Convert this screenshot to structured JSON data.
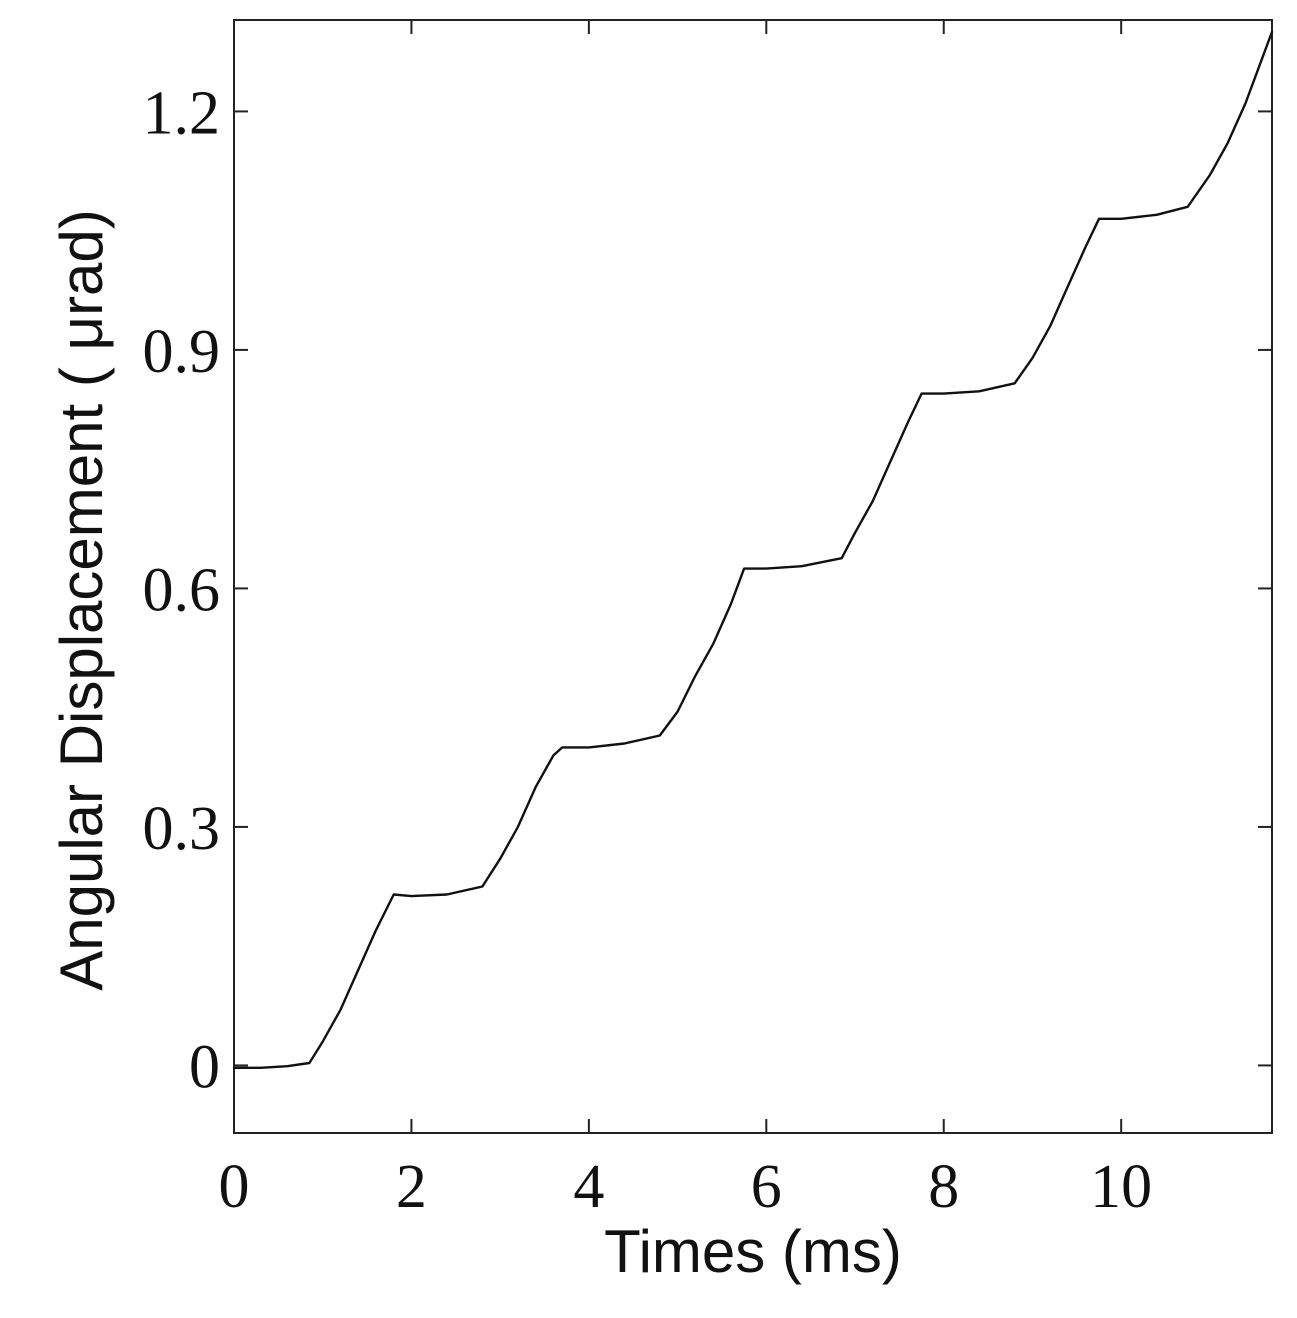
{
  "chart_data": {
    "type": "line",
    "xlabel": "Times (ms)",
    "ylabel": "Angular Displacement ( μrad)",
    "xlim": [
      0,
      11.7
    ],
    "ylim": [
      -0.085,
      1.315
    ],
    "xticks": [
      0,
      2,
      4,
      6,
      8,
      10
    ],
    "xtick_labels": [
      "0",
      "2",
      "4",
      "6",
      "8",
      "10"
    ],
    "yticks": [
      0,
      0.3,
      0.6,
      0.9,
      1.2
    ],
    "ytick_labels": [
      "0",
      "0.3",
      "0.6",
      "0.9",
      "1.2"
    ],
    "grid": false,
    "legend": "none",
    "series": [
      {
        "color": "#111111",
        "x": [
          0,
          0.3,
          0.6,
          0.85,
          1.0,
          1.2,
          1.4,
          1.6,
          1.8,
          2.0,
          2.4,
          2.8,
          3.0,
          3.2,
          3.4,
          3.6,
          3.7,
          4.0,
          4.4,
          4.8,
          5.0,
          5.2,
          5.4,
          5.6,
          5.75,
          6.0,
          6.4,
          6.85,
          7.0,
          7.2,
          7.4,
          7.6,
          7.75,
          8.0,
          8.4,
          8.8,
          9.0,
          9.2,
          9.4,
          9.6,
          9.75,
          10.0,
          10.4,
          10.75,
          11.0,
          11.2,
          11.4,
          11.6,
          11.7
        ],
        "y": [
          -0.003,
          -0.003,
          -0.001,
          0.003,
          0.03,
          0.07,
          0.12,
          0.17,
          0.215,
          0.213,
          0.215,
          0.225,
          0.26,
          0.3,
          0.35,
          0.39,
          0.4,
          0.4,
          0.405,
          0.415,
          0.445,
          0.49,
          0.53,
          0.58,
          0.625,
          0.625,
          0.628,
          0.638,
          0.67,
          0.71,
          0.76,
          0.81,
          0.845,
          0.845,
          0.848,
          0.858,
          0.89,
          0.93,
          0.98,
          1.03,
          1.065,
          1.065,
          1.07,
          1.08,
          1.12,
          1.16,
          1.21,
          1.27,
          1.3
        ]
      }
    ]
  }
}
